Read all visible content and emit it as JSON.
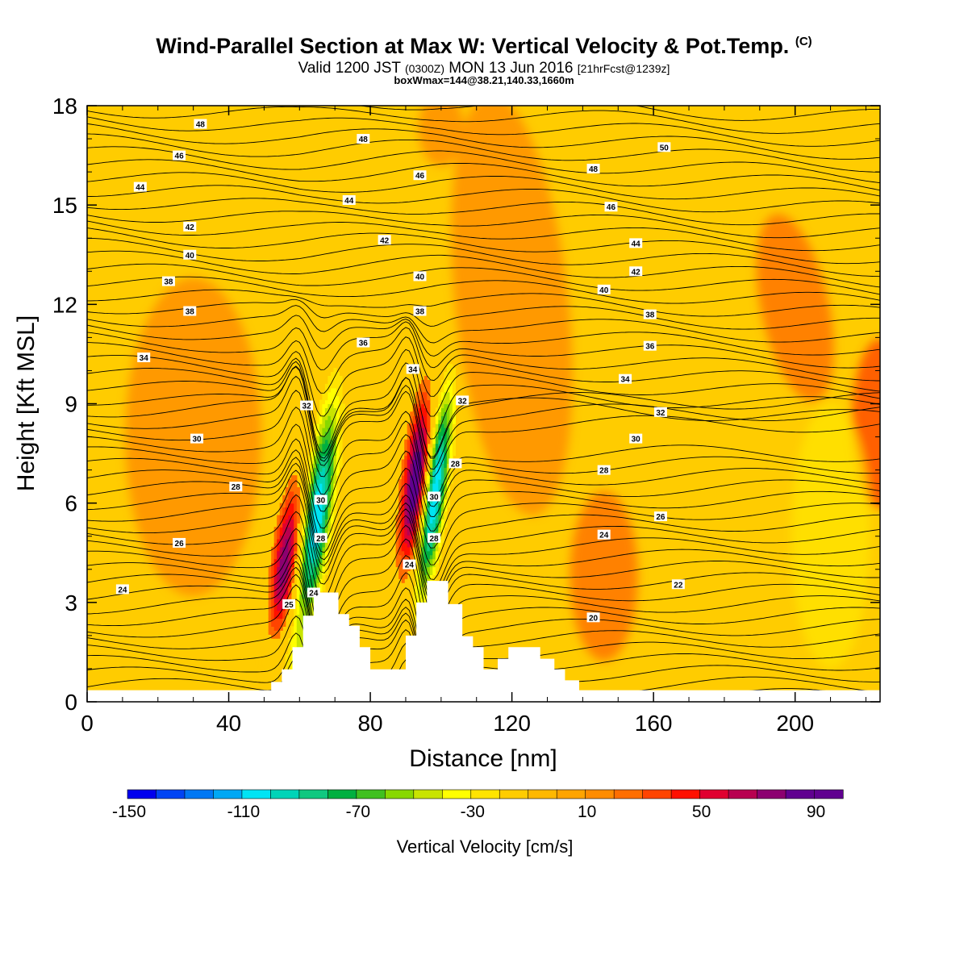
{
  "header": {
    "title": "Wind-Parallel Section at Max W: Vertical Velocity & Pot.Temp.",
    "title_mark": "(C)",
    "valid_prefix": "Valid 1200 JST",
    "valid_utc": "(0300Z)",
    "valid_date": "MON 13 Jun 2016",
    "valid_fcst": "[21hrFcst@1239z]",
    "box_info": "boxWmax=144@38.21,140.33,1660m"
  },
  "colors": {
    "terrain": "#ffffff",
    "frame": "#000000",
    "contour": "#000000",
    "colorbar_bins": [
      "#0000ee",
      "#0044f4",
      "#0078f4",
      "#00a8f4",
      "#00e4f4",
      "#00d4b8",
      "#10c880",
      "#00b040",
      "#40c020",
      "#88d800",
      "#c8e400",
      "#ffff00",
      "#ffe400",
      "#ffcc00",
      "#ffb800",
      "#ffa400",
      "#ff8c00",
      "#ff6e00",
      "#ff4400",
      "#ff1000",
      "#e00030",
      "#b80050",
      "#8c0070",
      "#600090"
    ]
  },
  "chart_data": {
    "type": "heatmap",
    "xlabel": "Distance [nm]",
    "ylabel": "Height [Kft MSL]",
    "xlim": [
      0,
      224
    ],
    "ylim": [
      0,
      18
    ],
    "x_ticks": [
      0,
      40,
      80,
      120,
      160,
      200
    ],
    "y_ticks": [
      0,
      3,
      6,
      9,
      12,
      15,
      18
    ],
    "fill_variable": "Vertical Velocity",
    "fill_units": "cm/s",
    "colorbar": {
      "label": "Vertical Velocity [cm/s]",
      "min": -150,
      "max": 100,
      "step": 10,
      "tick_values": [
        -150,
        -110,
        -70,
        -30,
        10,
        50,
        90
      ]
    },
    "contour_variable": "Potential Temperature",
    "contour_levels": [
      20,
      22,
      24,
      26,
      28,
      30,
      32,
      34,
      36,
      38,
      40,
      42,
      44,
      46,
      48,
      50
    ],
    "contour_labels": [
      {
        "text": "48",
        "x": 32,
        "y": 17.45
      },
      {
        "text": "48",
        "x": 78,
        "y": 17.0
      },
      {
        "text": "50",
        "x": 163,
        "y": 16.75
      },
      {
        "text": "46",
        "x": 26,
        "y": 16.5
      },
      {
        "text": "48",
        "x": 143,
        "y": 16.1
      },
      {
        "text": "46",
        "x": 94,
        "y": 15.9
      },
      {
        "text": "44",
        "x": 15,
        "y": 15.55
      },
      {
        "text": "44",
        "x": 74,
        "y": 15.15
      },
      {
        "text": "46",
        "x": 148,
        "y": 14.95
      },
      {
        "text": "42",
        "x": 29,
        "y": 14.35
      },
      {
        "text": "42",
        "x": 84,
        "y": 13.95
      },
      {
        "text": "44",
        "x": 155,
        "y": 13.85
      },
      {
        "text": "40",
        "x": 29,
        "y": 13.5
      },
      {
        "text": "42",
        "x": 155,
        "y": 13.0
      },
      {
        "text": "38",
        "x": 23,
        "y": 12.7
      },
      {
        "text": "40",
        "x": 94,
        "y": 12.85
      },
      {
        "text": "40",
        "x": 146,
        "y": 12.45
      },
      {
        "text": "38",
        "x": 29,
        "y": 11.8
      },
      {
        "text": "38",
        "x": 94,
        "y": 11.8
      },
      {
        "text": "38",
        "x": 159,
        "y": 11.7
      },
      {
        "text": "36",
        "x": 78,
        "y": 10.85
      },
      {
        "text": "36",
        "x": 159,
        "y": 10.75
      },
      {
        "text": "34",
        "x": 16,
        "y": 10.4
      },
      {
        "text": "34",
        "x": 92,
        "y": 10.05
      },
      {
        "text": "34",
        "x": 152,
        "y": 9.75
      },
      {
        "text": "32",
        "x": 62,
        "y": 8.95
      },
      {
        "text": "32",
        "x": 106,
        "y": 9.1
      },
      {
        "text": "32",
        "x": 162,
        "y": 8.75
      },
      {
        "text": "30",
        "x": 31,
        "y": 7.95
      },
      {
        "text": "30",
        "x": 155,
        "y": 7.95
      },
      {
        "text": "28",
        "x": 104,
        "y": 7.2
      },
      {
        "text": "28",
        "x": 146,
        "y": 7.0
      },
      {
        "text": "28",
        "x": 42,
        "y": 6.5
      },
      {
        "text": "30",
        "x": 66,
        "y": 6.1
      },
      {
        "text": "30",
        "x": 98,
        "y": 6.2
      },
      {
        "text": "26",
        "x": 162,
        "y": 5.6
      },
      {
        "text": "26",
        "x": 26,
        "y": 4.8
      },
      {
        "text": "28",
        "x": 66,
        "y": 4.95
      },
      {
        "text": "28",
        "x": 98,
        "y": 4.95
      },
      {
        "text": "24",
        "x": 146,
        "y": 5.05
      },
      {
        "text": "24",
        "x": 91,
        "y": 4.15
      },
      {
        "text": "24",
        "x": 10,
        "y": 3.4
      },
      {
        "text": "22",
        "x": 167,
        "y": 3.55
      },
      {
        "text": "25",
        "x": 57,
        "y": 2.95
      },
      {
        "text": "24",
        "x": 64,
        "y": 3.3
      },
      {
        "text": "20",
        "x": 143,
        "y": 2.55
      }
    ]
  },
  "image_description_hint": null
}
